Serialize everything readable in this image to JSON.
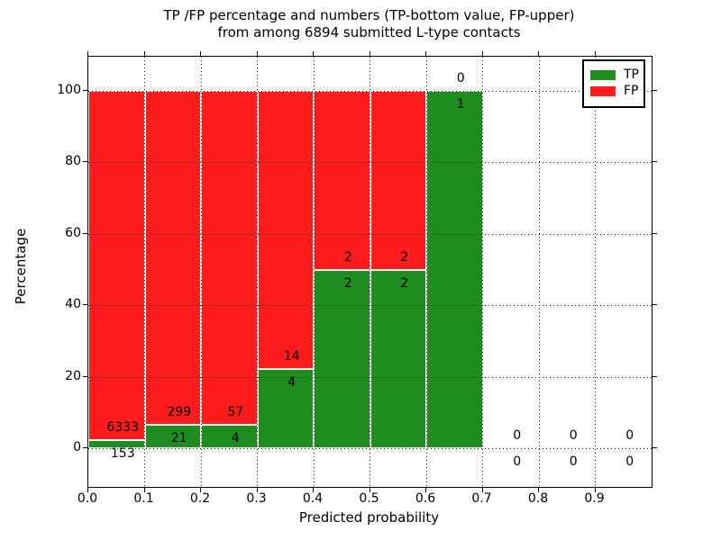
{
  "title": {
    "line1": "TP /FP percentage and numbers (TP-bottom value, FP-upper)",
    "line2": "from among 6894 submitted L-type contacts"
  },
  "chart_data": {
    "type": "bar",
    "stacked": true,
    "note": "Each bin stacked to 100%: TP percentage on bottom (green), FP percentage on top (red). Counts annotated: FP count above the TP/FP boundary, TP count below it.",
    "xlabel": "Predicted probability",
    "ylabel": "Percentage",
    "xlim": [
      0.0,
      1.0
    ],
    "ylim": [
      -11,
      110
    ],
    "grid": "dotted, drawn above bars",
    "x_tick_labels": [
      "0.0",
      "0.1",
      "0.2",
      "0.3",
      "0.4",
      "0.5",
      "0.6",
      "0.7",
      "0.8",
      "0.9"
    ],
    "y_ticks": [
      0,
      20,
      40,
      60,
      80,
      100
    ],
    "legend": {
      "position": "upper right",
      "entries": [
        {
          "label": "TP",
          "color": "#1e8c1e"
        },
        {
          "label": "FP",
          "color": "#ff1c1c"
        }
      ]
    },
    "bins": [
      {
        "range": [
          0.0,
          0.1
        ],
        "tp": 153,
        "fp": 6333
      },
      {
        "range": [
          0.1,
          0.2
        ],
        "tp": 21,
        "fp": 299
      },
      {
        "range": [
          0.2,
          0.3
        ],
        "tp": 4,
        "fp": 57
      },
      {
        "range": [
          0.3,
          0.4
        ],
        "tp": 4,
        "fp": 14
      },
      {
        "range": [
          0.4,
          0.5
        ],
        "tp": 2,
        "fp": 2
      },
      {
        "range": [
          0.5,
          0.6
        ],
        "tp": 2,
        "fp": 2
      },
      {
        "range": [
          0.6,
          0.7
        ],
        "tp": 1,
        "fp": 0
      },
      {
        "range": [
          0.7,
          0.8
        ],
        "tp": 0,
        "fp": 0
      },
      {
        "range": [
          0.8,
          0.9
        ],
        "tp": 0,
        "fp": 0
      },
      {
        "range": [
          0.9,
          1.0
        ],
        "tp": 0,
        "fp": 0
      }
    ],
    "colors": {
      "tp": "#1e8c1e",
      "fp": "#ff1c1c"
    }
  }
}
